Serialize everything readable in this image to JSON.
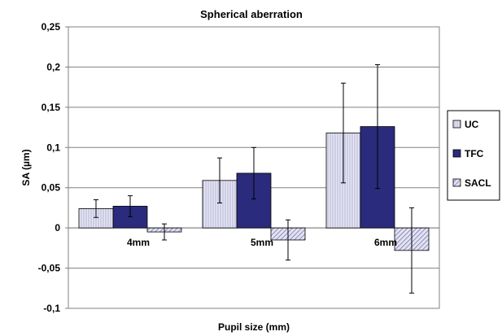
{
  "chart_data": {
    "type": "bar",
    "title": "Spherical aberration",
    "xlabel": "Pupil size (mm)",
    "ylabel": "SA (µm)",
    "ylim": [
      -0.1,
      0.25
    ],
    "yticks": [
      0.25,
      0.2,
      0.15,
      0.1,
      0.05,
      0,
      -0.05,
      -0.1
    ],
    "ytick_labels": [
      "0,25",
      "0,2",
      "0,15",
      "0,1",
      "0,05",
      "0",
      "-0,05",
      "-0,1"
    ],
    "categories": [
      "4mm",
      "5mm",
      "6mm"
    ],
    "grid": true,
    "legend_position": "right",
    "series": [
      {
        "name": "UC",
        "values": [
          0.024,
          0.059,
          0.118
        ],
        "errors": [
          0.011,
          0.028,
          0.062
        ],
        "color": "#d8d8ee",
        "pattern": "vertical-lines"
      },
      {
        "name": "TFC",
        "values": [
          0.027,
          0.068,
          0.126
        ],
        "errors": [
          0.013,
          0.032,
          0.077
        ],
        "color": "#2a2a7a",
        "pattern": "solid"
      },
      {
        "name": "SACL",
        "values": [
          -0.005,
          -0.015,
          -0.028
        ],
        "errors": [
          0.01,
          0.025,
          0.053
        ],
        "color": "#b4b4de",
        "pattern": "diagonal-lines"
      }
    ]
  }
}
